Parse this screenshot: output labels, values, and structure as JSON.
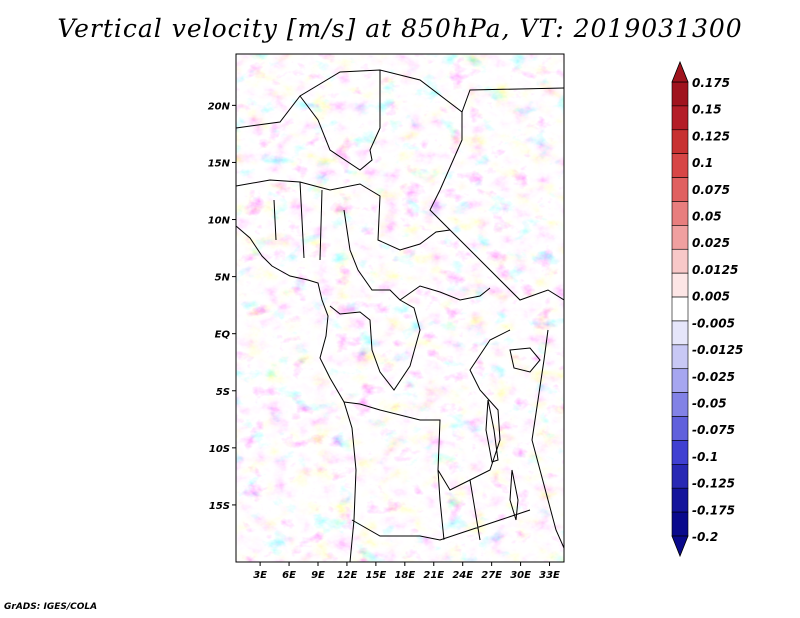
{
  "title": "Vertical velocity [m/s] at 850hPa, VT: 2019031300",
  "footer": "GrADS: IGES/COLA",
  "map": {
    "lat_labels": [
      "20N",
      "15N",
      "10N",
      "5N",
      "EQ",
      "5S",
      "10S",
      "15S"
    ],
    "lon_labels": [
      "3E",
      "6E",
      "9E",
      "12E",
      "15E",
      "18E",
      "21E",
      "24E",
      "27E",
      "30E",
      "33E"
    ],
    "lat_values": [
      20,
      15,
      10,
      5,
      0,
      -5,
      -10,
      -15
    ],
    "lon_values": [
      3,
      6,
      9,
      12,
      15,
      18,
      21,
      24,
      27,
      30,
      33
    ],
    "extent": {
      "lon_min": 0.5,
      "lon_max": 34.5,
      "lat_min": -20,
      "lat_max": 24.5
    },
    "field": "Vertical velocity",
    "units": "m/s",
    "level": "850hPa",
    "valid_time": "2019031300"
  },
  "colorbar": {
    "labels": [
      "0.175",
      "0.15",
      "0.125",
      "0.1",
      "0.075",
      "0.05",
      "0.025",
      "0.0125",
      "0.005",
      "-0.005",
      "-0.0125",
      "-0.025",
      "-0.05",
      "-0.075",
      "-0.1",
      "-0.125",
      "-0.175",
      "-0.2"
    ],
    "colors": [
      "#a0141e",
      "#b41e28",
      "#c83232",
      "#d74646",
      "#e06060",
      "#e87e7e",
      "#f0a0a0",
      "#f8c8c8",
      "#fde6e6",
      "#ffffff",
      "#e6e6fa",
      "#c8c8f5",
      "#a6a6f0",
      "#8282e6",
      "#6060dc",
      "#4040d2",
      "#2828b4",
      "#14149b",
      "#0a0a8c"
    ]
  }
}
